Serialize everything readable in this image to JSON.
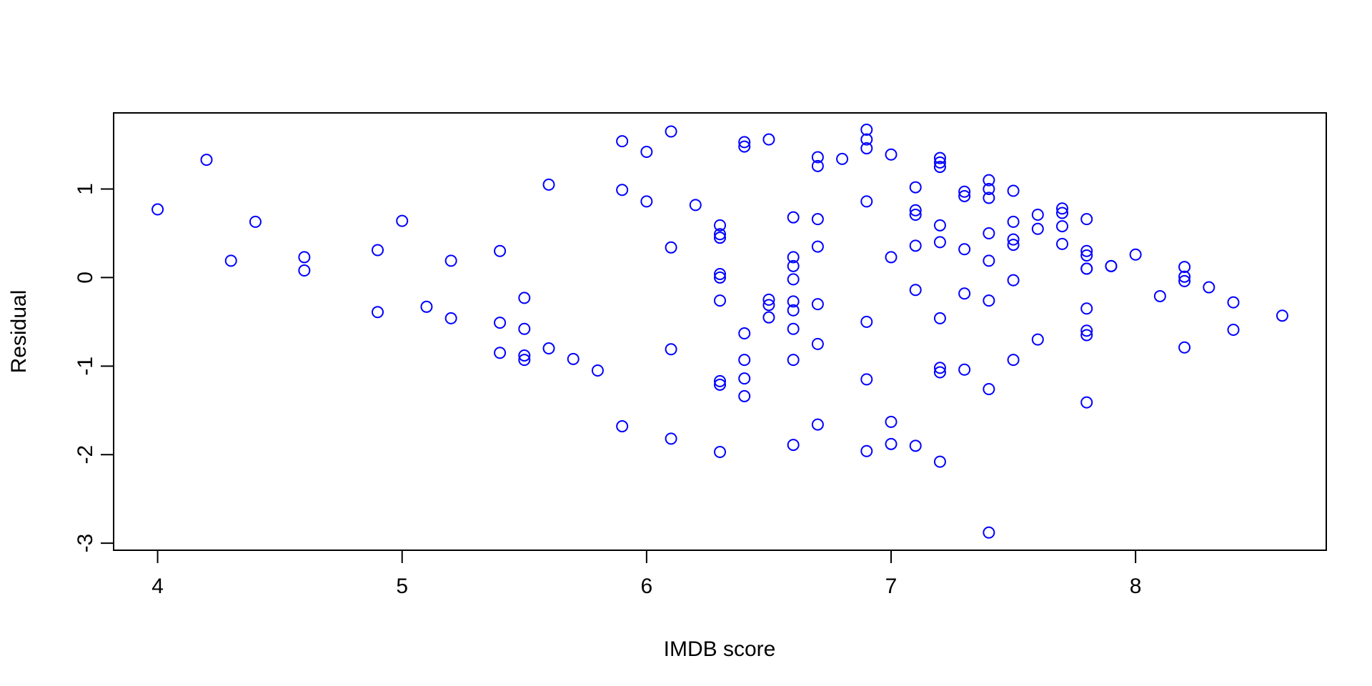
{
  "chart_data": {
    "type": "scatter",
    "title": "",
    "xlabel": "IMDB score",
    "ylabel": "Residual",
    "xlim": [
      3.82,
      8.78
    ],
    "ylim": [
      -3.08,
      1.86
    ],
    "xticks": [
      4,
      5,
      6,
      7,
      8
    ],
    "yticks": [
      -3,
      -2,
      -1,
      0,
      1
    ],
    "xtick_labels": [
      "4",
      "5",
      "6",
      "7",
      "8"
    ],
    "ytick_labels": [
      "-3",
      "-2",
      "-1",
      "0",
      "1"
    ],
    "grid": false,
    "legend": "none",
    "point_color": "#0000ff",
    "axis_color": "#000000",
    "points": [
      {
        "x": 4.0,
        "y": 0.77
      },
      {
        "x": 4.2,
        "y": 1.33
      },
      {
        "x": 4.3,
        "y": 0.19
      },
      {
        "x": 4.4,
        "y": 0.63
      },
      {
        "x": 4.6,
        "y": 0.23
      },
      {
        "x": 4.6,
        "y": 0.08
      },
      {
        "x": 4.9,
        "y": 0.31
      },
      {
        "x": 4.9,
        "y": -0.39
      },
      {
        "x": 5.0,
        "y": 0.64
      },
      {
        "x": 5.1,
        "y": -0.33
      },
      {
        "x": 5.2,
        "y": 0.19
      },
      {
        "x": 5.2,
        "y": -0.46
      },
      {
        "x": 5.4,
        "y": 0.3
      },
      {
        "x": 5.4,
        "y": -0.51
      },
      {
        "x": 5.4,
        "y": -0.85
      },
      {
        "x": 5.5,
        "y": -0.23
      },
      {
        "x": 5.5,
        "y": -0.58
      },
      {
        "x": 5.5,
        "y": -0.88
      },
      {
        "x": 5.5,
        "y": -0.93
      },
      {
        "x": 5.6,
        "y": 1.05
      },
      {
        "x": 5.6,
        "y": -0.8
      },
      {
        "x": 5.7,
        "y": -0.92
      },
      {
        "x": 5.8,
        "y": -1.05
      },
      {
        "x": 5.9,
        "y": 1.54
      },
      {
        "x": 5.9,
        "y": 0.99
      },
      {
        "x": 5.9,
        "y": -1.68
      },
      {
        "x": 6.0,
        "y": 1.42
      },
      {
        "x": 6.0,
        "y": 0.86
      },
      {
        "x": 6.1,
        "y": 1.65
      },
      {
        "x": 6.1,
        "y": 0.34
      },
      {
        "x": 6.1,
        "y": -0.81
      },
      {
        "x": 6.1,
        "y": -1.82
      },
      {
        "x": 6.2,
        "y": 0.82
      },
      {
        "x": 6.3,
        "y": 0.59
      },
      {
        "x": 6.3,
        "y": 0.49
      },
      {
        "x": 6.3,
        "y": 0.45
      },
      {
        "x": 6.3,
        "y": 0.04
      },
      {
        "x": 6.3,
        "y": 0.0
      },
      {
        "x": 6.3,
        "y": -0.26
      },
      {
        "x": 6.3,
        "y": -1.17
      },
      {
        "x": 6.3,
        "y": -1.21
      },
      {
        "x": 6.3,
        "y": -1.97
      },
      {
        "x": 6.4,
        "y": 1.53
      },
      {
        "x": 6.4,
        "y": 1.48
      },
      {
        "x": 6.4,
        "y": -0.63
      },
      {
        "x": 6.4,
        "y": -0.93
      },
      {
        "x": 6.4,
        "y": -1.14
      },
      {
        "x": 6.4,
        "y": -1.34
      },
      {
        "x": 6.5,
        "y": 1.56
      },
      {
        "x": 6.5,
        "y": -0.25
      },
      {
        "x": 6.5,
        "y": -0.31
      },
      {
        "x": 6.5,
        "y": -0.45
      },
      {
        "x": 6.6,
        "y": 0.68
      },
      {
        "x": 6.6,
        "y": 0.23
      },
      {
        "x": 6.6,
        "y": 0.13
      },
      {
        "x": 6.6,
        "y": -0.02
      },
      {
        "x": 6.6,
        "y": -0.27
      },
      {
        "x": 6.6,
        "y": -0.37
      },
      {
        "x": 6.6,
        "y": -0.58
      },
      {
        "x": 6.6,
        "y": -0.93
      },
      {
        "x": 6.6,
        "y": -1.89
      },
      {
        "x": 6.7,
        "y": 1.36
      },
      {
        "x": 6.7,
        "y": 1.26
      },
      {
        "x": 6.7,
        "y": 0.66
      },
      {
        "x": 6.7,
        "y": 0.35
      },
      {
        "x": 6.7,
        "y": -0.3
      },
      {
        "x": 6.7,
        "y": -0.75
      },
      {
        "x": 6.7,
        "y": -1.66
      },
      {
        "x": 6.8,
        "y": 1.34
      },
      {
        "x": 6.9,
        "y": 1.67
      },
      {
        "x": 6.9,
        "y": 1.56
      },
      {
        "x": 6.9,
        "y": 1.46
      },
      {
        "x": 6.9,
        "y": 0.86
      },
      {
        "x": 6.9,
        "y": -0.5
      },
      {
        "x": 6.9,
        "y": -1.15
      },
      {
        "x": 6.9,
        "y": -1.96
      },
      {
        "x": 7.0,
        "y": 1.39
      },
      {
        "x": 7.0,
        "y": 0.23
      },
      {
        "x": 7.0,
        "y": -1.63
      },
      {
        "x": 7.0,
        "y": -1.88
      },
      {
        "x": 7.1,
        "y": 1.02
      },
      {
        "x": 7.1,
        "y": 0.76
      },
      {
        "x": 7.1,
        "y": 0.71
      },
      {
        "x": 7.1,
        "y": 0.36
      },
      {
        "x": 7.1,
        "y": -0.14
      },
      {
        "x": 7.1,
        "y": -1.9
      },
      {
        "x": 7.2,
        "y": 1.35
      },
      {
        "x": 7.2,
        "y": 1.3
      },
      {
        "x": 7.2,
        "y": 1.25
      },
      {
        "x": 7.2,
        "y": 0.59
      },
      {
        "x": 7.2,
        "y": 0.4
      },
      {
        "x": 7.2,
        "y": -0.46
      },
      {
        "x": 7.2,
        "y": -1.02
      },
      {
        "x": 7.2,
        "y": -1.07
      },
      {
        "x": 7.2,
        "y": -2.08
      },
      {
        "x": 7.3,
        "y": 0.97
      },
      {
        "x": 7.3,
        "y": 0.92
      },
      {
        "x": 7.3,
        "y": 0.32
      },
      {
        "x": 7.3,
        "y": -0.18
      },
      {
        "x": 7.3,
        "y": -1.04
      },
      {
        "x": 7.4,
        "y": 1.1
      },
      {
        "x": 7.4,
        "y": 1.0
      },
      {
        "x": 7.4,
        "y": 0.9
      },
      {
        "x": 7.4,
        "y": 0.5
      },
      {
        "x": 7.4,
        "y": 0.19
      },
      {
        "x": 7.4,
        "y": -0.26
      },
      {
        "x": 7.4,
        "y": -1.26
      },
      {
        "x": 7.4,
        "y": -2.88
      },
      {
        "x": 7.5,
        "y": 0.98
      },
      {
        "x": 7.5,
        "y": 0.63
      },
      {
        "x": 7.5,
        "y": 0.43
      },
      {
        "x": 7.5,
        "y": 0.37
      },
      {
        "x": 7.5,
        "y": -0.03
      },
      {
        "x": 7.5,
        "y": -0.93
      },
      {
        "x": 7.6,
        "y": 0.71
      },
      {
        "x": 7.6,
        "y": 0.55
      },
      {
        "x": 7.6,
        "y": -0.7
      },
      {
        "x": 7.7,
        "y": 0.78
      },
      {
        "x": 7.7,
        "y": 0.73
      },
      {
        "x": 7.7,
        "y": 0.58
      },
      {
        "x": 7.7,
        "y": 0.38
      },
      {
        "x": 7.8,
        "y": 0.66
      },
      {
        "x": 7.8,
        "y": 0.3
      },
      {
        "x": 7.8,
        "y": 0.25
      },
      {
        "x": 7.8,
        "y": 0.1
      },
      {
        "x": 7.8,
        "y": 0.1
      },
      {
        "x": 7.8,
        "y": -0.35
      },
      {
        "x": 7.8,
        "y": -0.6
      },
      {
        "x": 7.8,
        "y": -0.65
      },
      {
        "x": 7.8,
        "y": -1.41
      },
      {
        "x": 7.9,
        "y": 0.13
      },
      {
        "x": 7.9,
        "y": 0.13
      },
      {
        "x": 8.0,
        "y": 0.26
      },
      {
        "x": 8.1,
        "y": -0.21
      },
      {
        "x": 8.2,
        "y": 0.12
      },
      {
        "x": 8.2,
        "y": 0.01
      },
      {
        "x": 8.2,
        "y": -0.04
      },
      {
        "x": 8.2,
        "y": -0.79
      },
      {
        "x": 8.3,
        "y": -0.11
      },
      {
        "x": 8.4,
        "y": -0.28
      },
      {
        "x": 8.4,
        "y": -0.59
      },
      {
        "x": 8.6,
        "y": -0.43
      }
    ]
  }
}
